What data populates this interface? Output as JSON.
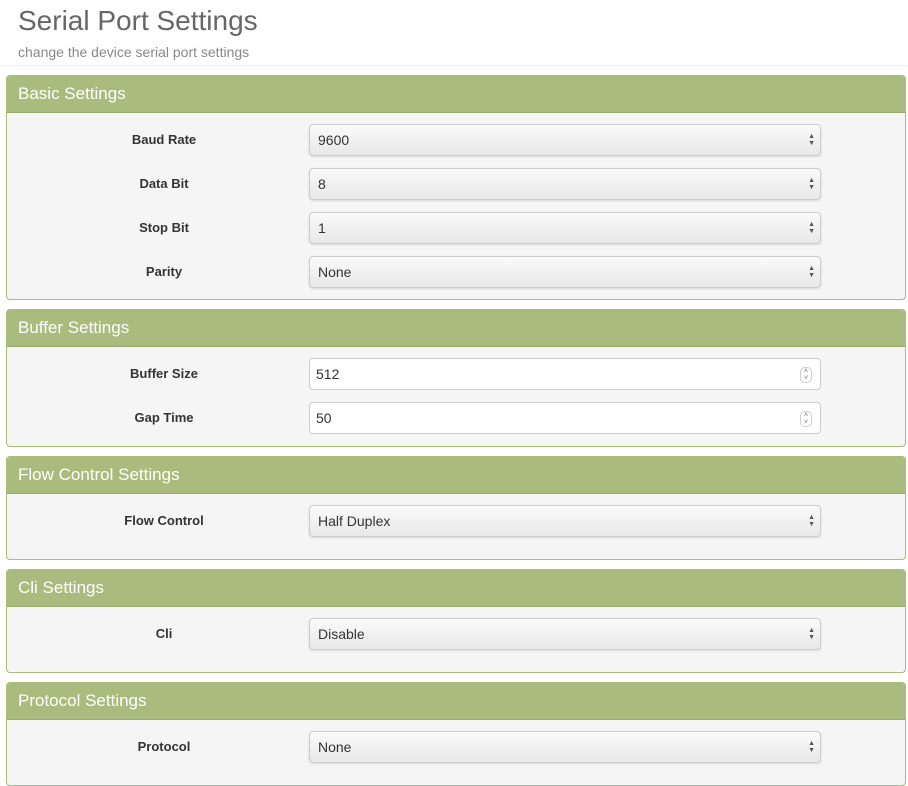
{
  "header": {
    "title": "Serial Port Settings",
    "subtitle": "change the device serial port settings"
  },
  "panels": [
    {
      "title": "Basic Settings",
      "fields": [
        {
          "label": "Baud Rate",
          "value": "9600",
          "type": "select"
        },
        {
          "label": "Data Bit",
          "value": "8",
          "type": "select"
        },
        {
          "label": "Stop Bit",
          "value": "1",
          "type": "select"
        },
        {
          "label": "Parity",
          "value": "None",
          "type": "select"
        }
      ]
    },
    {
      "title": "Buffer Settings",
      "fields": [
        {
          "label": "Buffer Size",
          "value": "512",
          "type": "number"
        },
        {
          "label": "Gap Time",
          "value": "50",
          "type": "number"
        }
      ]
    },
    {
      "title": "Flow Control Settings",
      "fields": [
        {
          "label": "Flow Control",
          "value": "Half Duplex",
          "type": "select"
        }
      ]
    },
    {
      "title": "Cli Settings",
      "fields": [
        {
          "label": "Cli",
          "value": "Disable",
          "type": "select"
        }
      ]
    },
    {
      "title": "Protocol Settings",
      "fields": [
        {
          "label": "Protocol",
          "value": "None",
          "type": "select"
        }
      ]
    }
  ],
  "colors": {
    "panel_header": "#a9bb7d"
  }
}
